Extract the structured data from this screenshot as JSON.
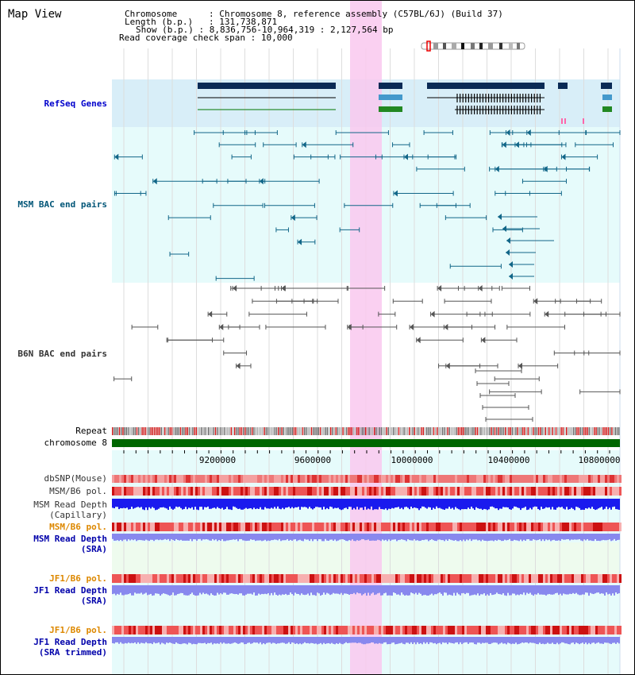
{
  "page": {
    "title": "Map View"
  },
  "info": {
    "chromosome_key": "Chromosome",
    "chromosome_val": "Chromosome 8, reference assembly (C57BL/6J) (Build 37)",
    "length_key": "Length (b.p.)",
    "length_val": "131,738,871",
    "show_key": "Show (b.p.)",
    "show_val": "8,836,756-10,964,319 : 2,127,564 bp",
    "coverage_key": "Read coverage check span",
    "coverage_val": "10,000"
  },
  "tracks": {
    "refseq": {
      "label": "RefSeq Genes",
      "color": "#0000cc"
    },
    "msm_bac": {
      "label": "MSM BAC end pairs",
      "color": "#005577"
    },
    "b6n_bac": {
      "label": "B6N BAC end pairs",
      "color": "#333333"
    },
    "repeat": {
      "label": "Repeat"
    },
    "chromosome": {
      "label": "chromosome 8",
      "bar_color": "#006600"
    },
    "dbsnp": {
      "label": "dbSNP(Mouse)"
    },
    "msm_b6_pol": {
      "label": "MSM/B6 pol."
    },
    "msm_depth_cap": {
      "line1": "MSM Read Depth",
      "line2": "(Capillary)"
    },
    "msm_b6_pol2": {
      "label": "MSM/B6 pol.",
      "color": "#dd8800"
    },
    "msm_depth_sra": {
      "line1": "MSM Read Depth",
      "line2": "(SRA)"
    },
    "jf1_b6_pol": {
      "label": "JF1/B6 pol.",
      "color": "#dd8800"
    },
    "jf1_depth_sra": {
      "line1": "JF1 Read Depth",
      "line2": "(SRA)"
    },
    "jf1_b6_pol2": {
      "label": "JF1/B6 pol.",
      "color": "#dd8800"
    },
    "jf1_depth_trim": {
      "line1": "JF1 Read Depth",
      "line2": "(SRA trimmed)"
    }
  },
  "axis": {
    "ticks": [
      "9200000",
      "9600000",
      "10000000",
      "10400000",
      "10800000"
    ]
  },
  "colors": {
    "highlight": "#f9c8ee",
    "refseq_bg": "#d8eef8",
    "msm_bg": "#e6fbfb",
    "depth_bar": "#1a1aee",
    "depth_sra": "#8888ee",
    "pol_red": "#ee4444"
  }
}
